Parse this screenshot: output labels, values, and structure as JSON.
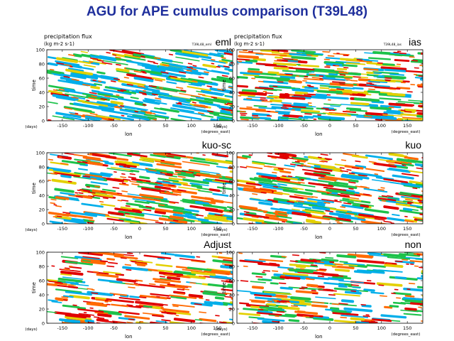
{
  "title": "AGU for APE cumulus comparison (T39L48)",
  "chart_data": [
    {
      "type": "heatmap",
      "model": "eml",
      "title": "precipitation flux",
      "units": "(kg m-2 s-1)",
      "run_tag": "T39L48_eml",
      "xlabel": "lon",
      "ylabel": "time",
      "x_units": "(degrees_east)",
      "y_units": "(days)",
      "xlim": [
        -180,
        180
      ],
      "ylim": [
        0,
        100
      ],
      "xticks": [
        -150,
        -100,
        -50,
        0,
        50,
        100,
        150
      ],
      "yticks": [
        0,
        20,
        40,
        60,
        80,
        100
      ],
      "palette": [
        "#00aeea",
        "#1cc24a",
        "#e3d000",
        "#ff6a00",
        "#e00000"
      ],
      "structure": {
        "slope_days_per_deg": -0.12,
        "dominant": "blue-green",
        "density": 0.85
      }
    },
    {
      "type": "heatmap",
      "model": "ias",
      "title": "precipitation flux",
      "units": "(kg m-2 s-1)",
      "run_tag": "T39L48_ias",
      "xlabel": "lon",
      "ylabel": "time",
      "x_units": "(degrees_east)",
      "y_units": "(days)",
      "xlim": [
        -180,
        180
      ],
      "ylim": [
        0,
        100
      ],
      "xticks": [
        -150,
        -100,
        -50,
        0,
        50,
        100,
        150
      ],
      "yticks": [
        0,
        20,
        40,
        60,
        80,
        100
      ],
      "palette": [
        "#00aeea",
        "#1cc24a",
        "#e3d000",
        "#ff6a00",
        "#e00000"
      ],
      "structure": {
        "slope_days_per_deg": -0.05,
        "dominant": "mixed",
        "density": 0.9
      }
    },
    {
      "type": "heatmap",
      "model": "kuo-sc",
      "xlabel": "lon",
      "ylabel": "time",
      "x_units": "(degrees_east)",
      "y_units": "(days)",
      "xlim": [
        -180,
        180
      ],
      "ylim": [
        0,
        100
      ],
      "xticks": [
        -150,
        -100,
        -50,
        0,
        50,
        100,
        150
      ],
      "yticks": [
        0,
        20,
        40,
        60,
        80,
        100
      ],
      "palette": [
        "#00aeea",
        "#1cc24a",
        "#e3d000",
        "#ff6a00",
        "#e00000"
      ],
      "structure": {
        "slope_days_per_deg": -0.1,
        "dominant": "mixed",
        "density": 0.7
      }
    },
    {
      "type": "heatmap",
      "model": "kuo",
      "xlabel": "lon",
      "ylabel": "time",
      "x_units": "(degrees_east)",
      "y_units": "(days)",
      "xlim": [
        -180,
        180
      ],
      "ylim": [
        0,
        100
      ],
      "xticks": [
        -150,
        -100,
        -50,
        0,
        50,
        100,
        150
      ],
      "yticks": [
        0,
        20,
        40,
        60,
        80,
        100
      ],
      "palette": [
        "#00aeea",
        "#1cc24a",
        "#e3d000",
        "#ff6a00",
        "#e00000"
      ],
      "structure": {
        "slope_days_per_deg": -0.1,
        "dominant": "mixed",
        "density": 0.75
      }
    },
    {
      "type": "heatmap",
      "model": "Adjust",
      "xlabel": "lon",
      "ylabel": "time",
      "x_units": "(degrees_east)",
      "y_units": "(days)",
      "xlim": [
        -180,
        180
      ],
      "ylim": [
        0,
        100
      ],
      "xticks": [
        -150,
        -100,
        -50,
        0,
        50,
        100,
        150
      ],
      "yticks": [
        0,
        20,
        40,
        60,
        80,
        100
      ],
      "palette": [
        "#00aeea",
        "#1cc24a",
        "#e3d000",
        "#ff6a00",
        "#e00000"
      ],
      "structure": {
        "slope_days_per_deg": -0.08,
        "dominant": "red-orange",
        "density": 0.55
      }
    },
    {
      "type": "heatmap",
      "model": "non",
      "xlabel": "lon",
      "ylabel": "time",
      "x_units": "(degrees_east)",
      "y_units": "(days)",
      "xlim": [
        -180,
        180
      ],
      "ylim": [
        0,
        100
      ],
      "xticks": [
        -150,
        -100,
        -50,
        0,
        50,
        100,
        150
      ],
      "yticks": [
        0,
        20,
        40,
        60,
        80,
        100
      ],
      "palette": [
        "#00aeea",
        "#1cc24a",
        "#e3d000",
        "#ff6a00",
        "#e00000"
      ],
      "structure": {
        "slope_days_per_deg": -0.06,
        "dominant": "mixed",
        "density": 0.55
      }
    }
  ]
}
